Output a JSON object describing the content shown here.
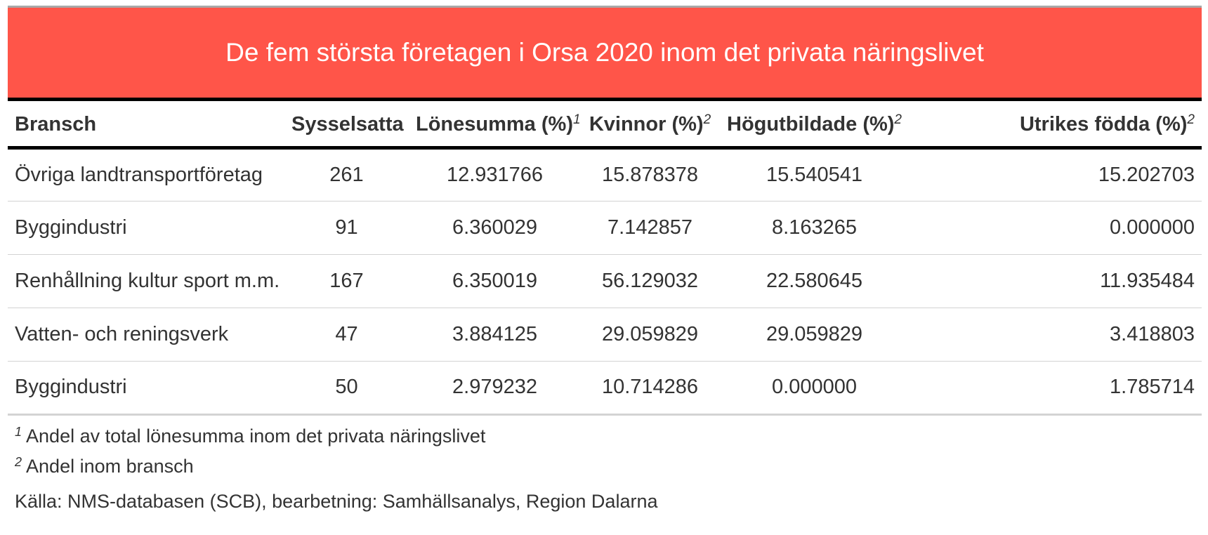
{
  "title": "De fem största företagen i Orsa 2020 inom det privata näringslivet",
  "columns": [
    {
      "label": "Bransch",
      "mark": ""
    },
    {
      "label": "Sysselsatta",
      "mark": ""
    },
    {
      "label": "Lönesumma (%)",
      "mark": "1"
    },
    {
      "label": "Kvinnor (%)",
      "mark": "2"
    },
    {
      "label": "Högutbildade (%)",
      "mark": "2"
    },
    {
      "label": "Utrikes födda (%)",
      "mark": "2"
    }
  ],
  "rows": [
    [
      "Övriga landtransportföretag",
      "261",
      "12.931766",
      "15.878378",
      "15.540541",
      "15.202703"
    ],
    [
      "Byggindustri",
      "91",
      "6.360029",
      "7.142857",
      "8.163265",
      "0.000000"
    ],
    [
      "Renhållning kultur sport m.m.",
      "167",
      "6.350019",
      "56.129032",
      "22.580645",
      "11.935484"
    ],
    [
      "Vatten- och reningsverk",
      "47",
      "3.884125",
      "29.059829",
      "29.059829",
      "3.418803"
    ],
    [
      "Byggindustri",
      "50",
      "2.979232",
      "10.714286",
      "0.000000",
      "1.785714"
    ]
  ],
  "footnotes": [
    {
      "mark": "1",
      "text": "Andel av total lönesumma inom det privata näringslivet"
    },
    {
      "mark": "2",
      "text": "Andel inom bransch"
    }
  ],
  "source": "Källa: NMS-databasen (SCB), bearbetning: Samhällsanalys, Region Dalarna",
  "colors": {
    "title_background": "#ff5549",
    "title_text": "#ffffff",
    "rule": "#000000",
    "row_divider": "#d3d3d3"
  }
}
